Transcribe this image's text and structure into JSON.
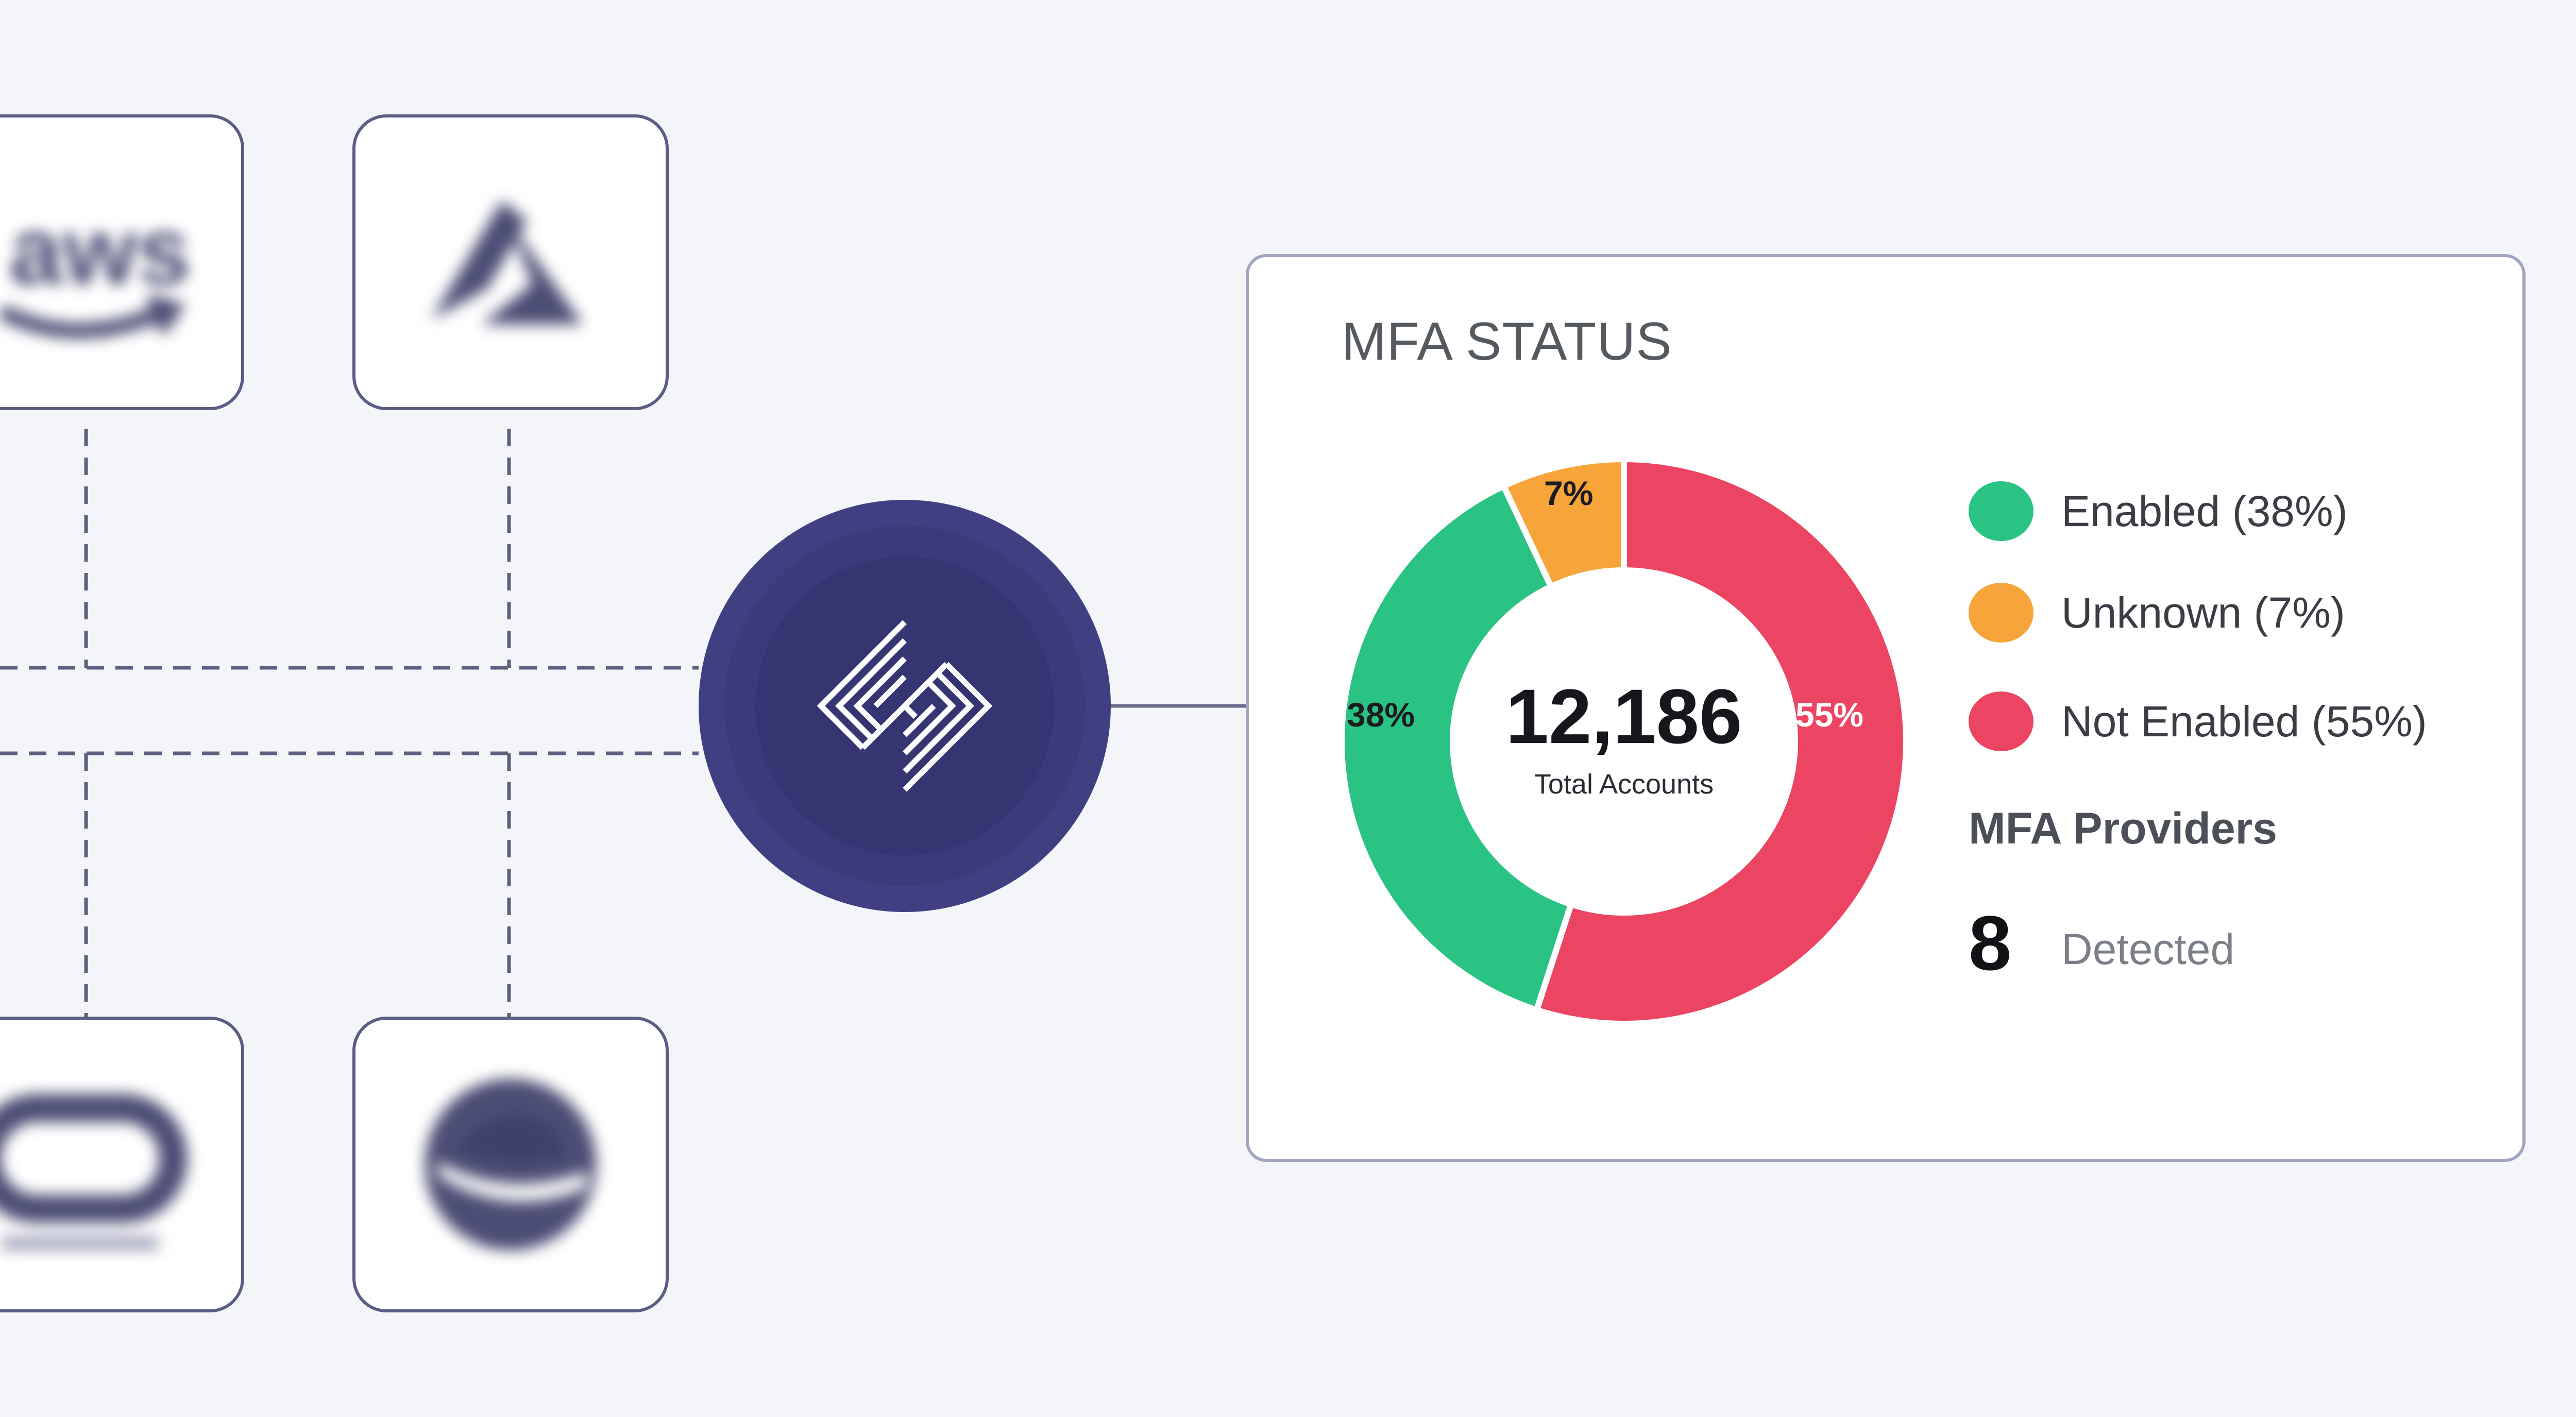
{
  "integrations": [
    {
      "name": "aws",
      "icon": "aws-logo-icon"
    },
    {
      "name": "azure",
      "icon": "azure-logo-icon"
    },
    {
      "name": "oracle",
      "icon": "oracle-logo-icon"
    },
    {
      "name": "redhat",
      "icon": "redhat-logo-icon"
    }
  ],
  "hub": {
    "icon": "platform-logo-icon"
  },
  "mfa_card": {
    "title": "MFA STATUS",
    "total_value": "12,186",
    "total_label": "Total Accounts",
    "legend": [
      {
        "label": "Enabled (38%)",
        "color": "#2bc384"
      },
      {
        "label": "Unknown (7%)",
        "color": "#f7a43b"
      },
      {
        "label": "Not Enabled (55%)",
        "color": "#ec4563"
      }
    ],
    "slice_labels": {
      "enabled": "38%",
      "unknown": "7%",
      "not_enabled": "55%"
    },
    "providers": {
      "title": "MFA Providers",
      "count": "8",
      "label": "Detected"
    }
  },
  "chart_data": {
    "type": "pie",
    "title": "MFA STATUS",
    "categories": [
      "Enabled",
      "Unknown",
      "Not Enabled"
    ],
    "values": [
      38,
      7,
      55
    ],
    "colors": [
      "#2bc384",
      "#f7a43b",
      "#ec4563"
    ],
    "center_value": "12,186",
    "center_label": "Total Accounts"
  }
}
